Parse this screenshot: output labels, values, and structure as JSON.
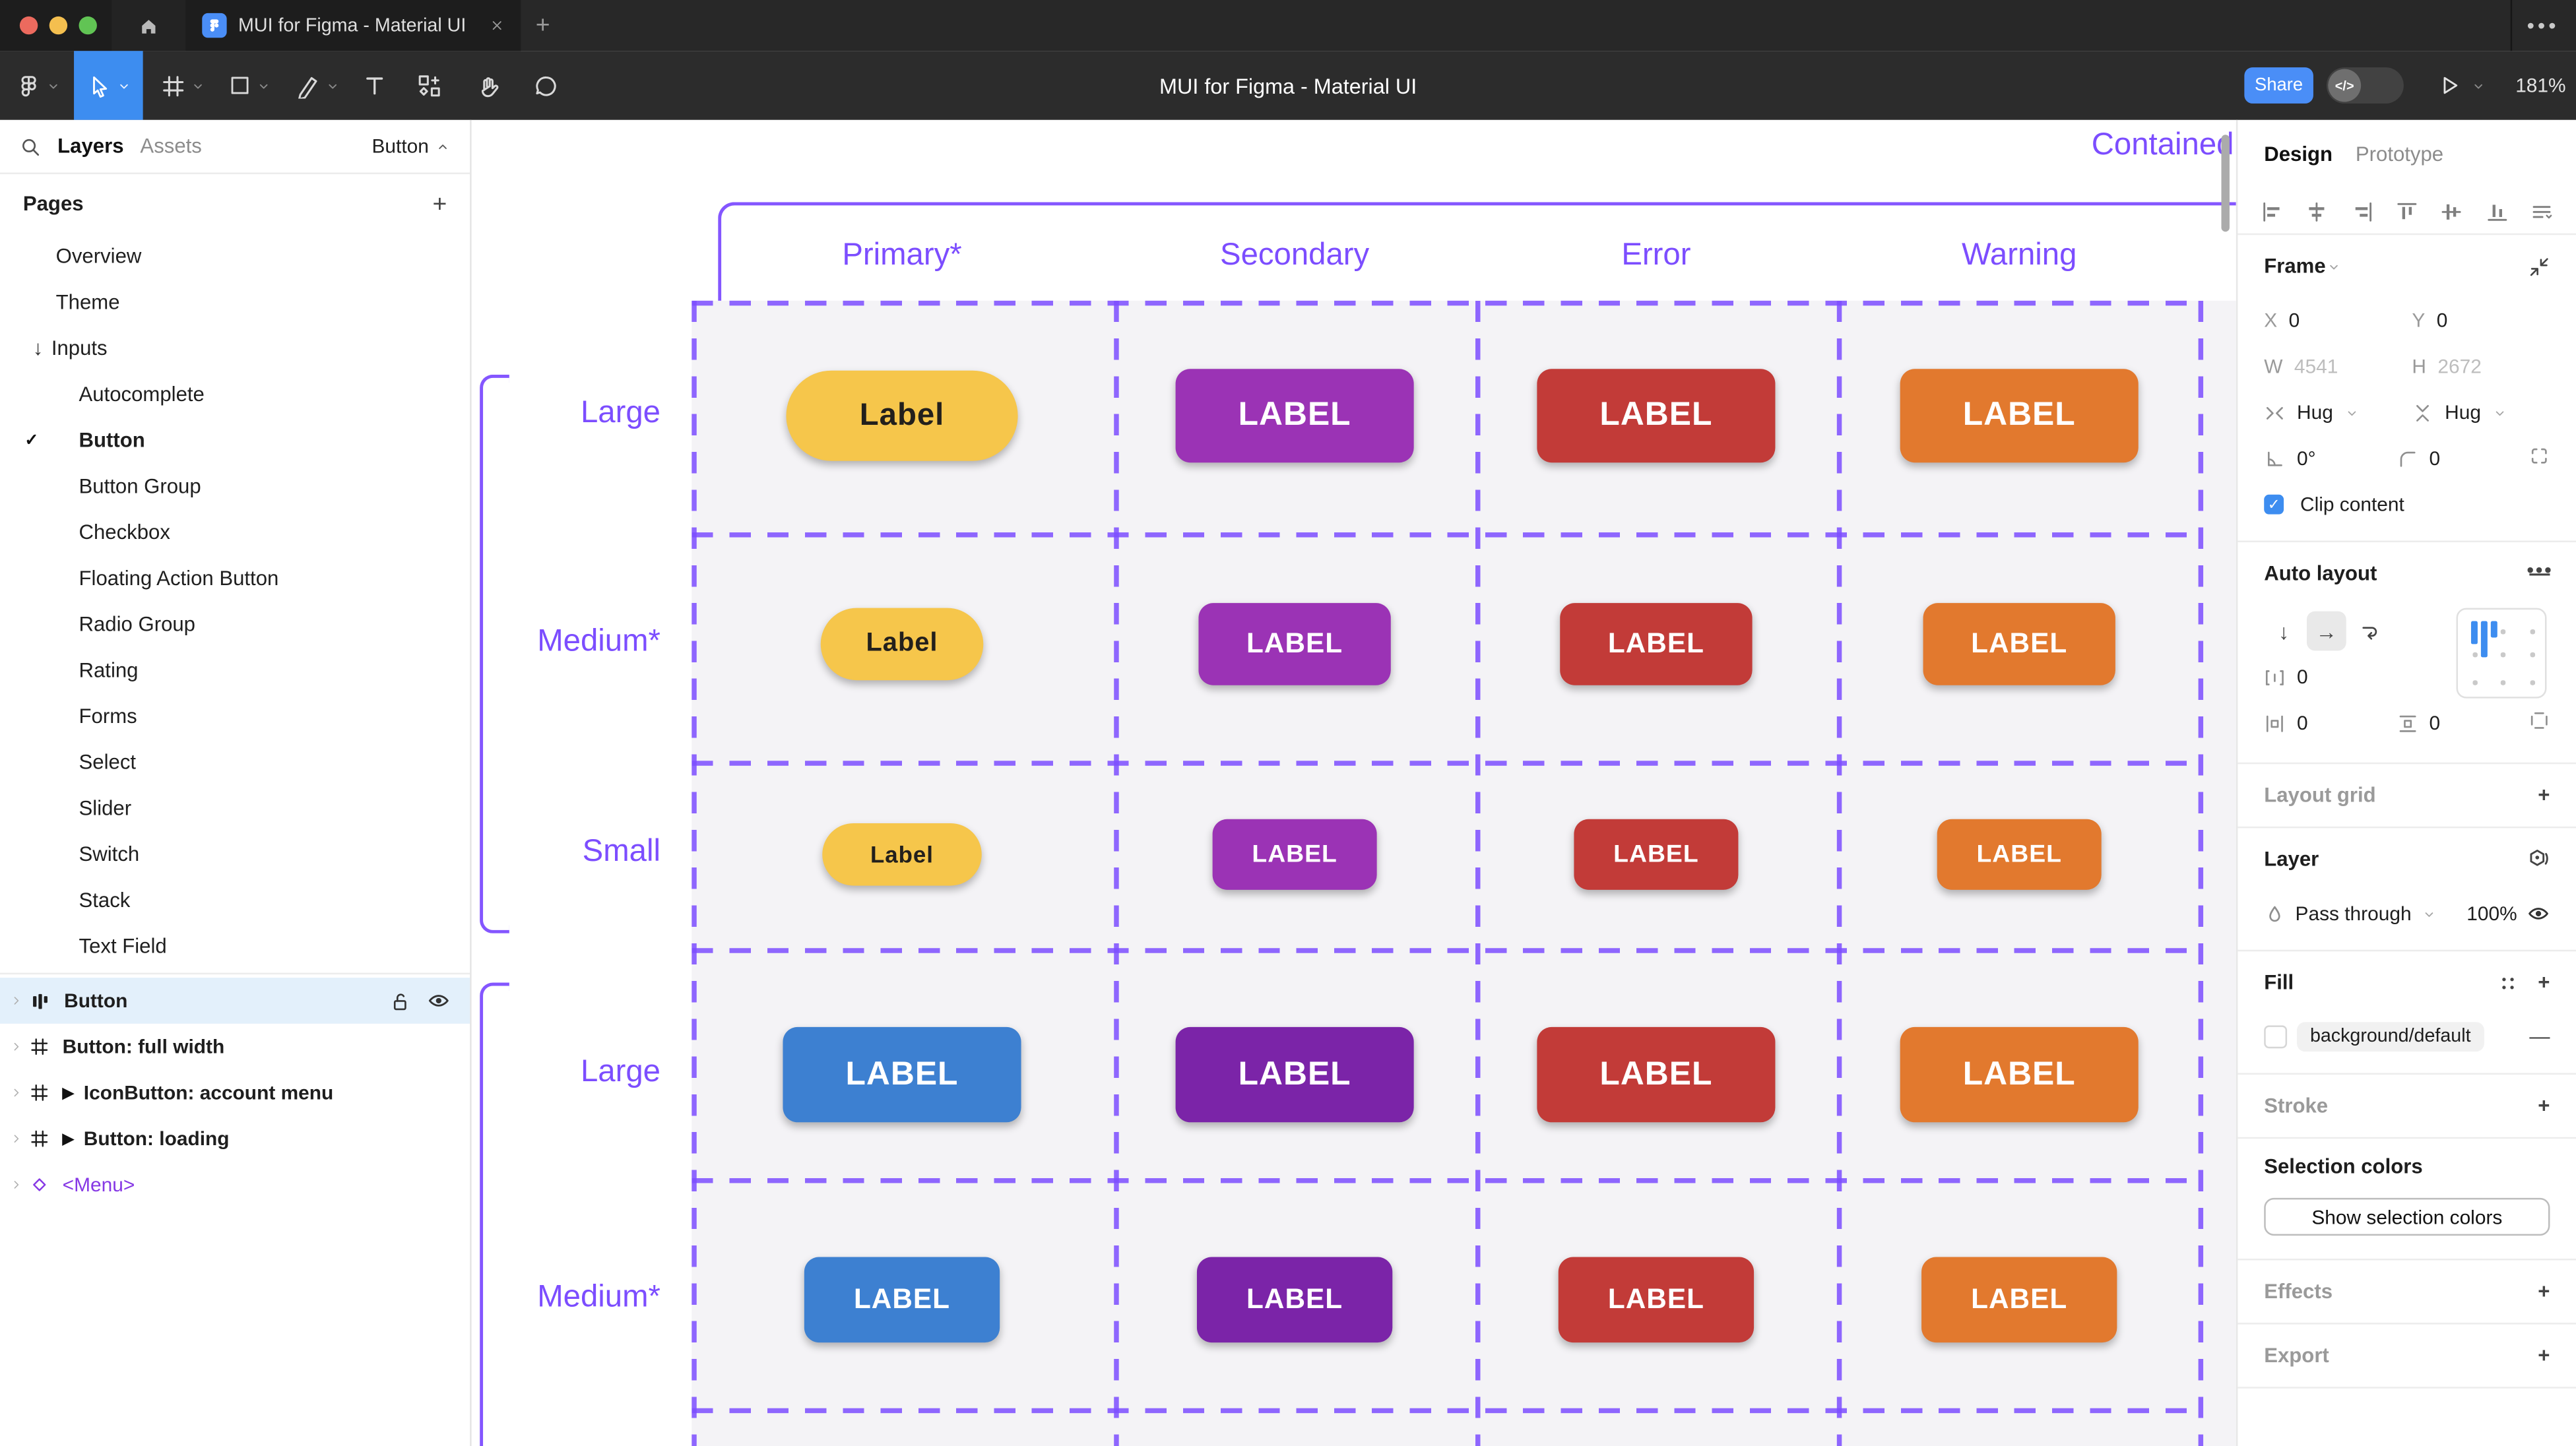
{
  "window": {
    "tab_title": "MUI for Figma - Material UI",
    "more_menu": "•••"
  },
  "toolbar": {
    "doc_title": "MUI for Figma - Material UI",
    "share_label": "Share",
    "dev_toggle_label": "</>",
    "zoom_value": "181%"
  },
  "sidebar": {
    "tabs": [
      {
        "label": "Layers",
        "active": true
      },
      {
        "label": "Assets",
        "active": false
      }
    ],
    "selection_chip": "Button",
    "pages_title": "Pages",
    "pages": [
      {
        "label": "Overview",
        "level": 0
      },
      {
        "label": "Theme",
        "level": 0
      },
      {
        "label": "Inputs",
        "level": 0,
        "arrow": "↓"
      },
      {
        "label": "Autocomplete",
        "level": 1
      },
      {
        "label": "Button",
        "level": 1,
        "current": true,
        "check": "✓"
      },
      {
        "label": "Button Group",
        "level": 1
      },
      {
        "label": "Checkbox",
        "level": 1
      },
      {
        "label": "Floating Action Button",
        "level": 1
      },
      {
        "label": "Radio Group",
        "level": 1
      },
      {
        "label": "Rating",
        "level": 1
      },
      {
        "label": "Forms",
        "level": 1
      },
      {
        "label": "Select",
        "level": 1
      },
      {
        "label": "Slider",
        "level": 1
      },
      {
        "label": "Switch",
        "level": 1
      },
      {
        "label": "Stack",
        "level": 1
      },
      {
        "label": "Text Field",
        "level": 1
      }
    ],
    "layers": [
      {
        "label": "Button",
        "icon": "autolayout",
        "selected": true
      },
      {
        "label": "Button: full width",
        "icon": "frame"
      },
      {
        "label": "IconButton: account menu",
        "icon": "frame",
        "play": "▶"
      },
      {
        "label": "Button: loading",
        "icon": "frame",
        "play": "▶"
      },
      {
        "label": "<Menu>",
        "icon": "diamond",
        "purple": true
      }
    ]
  },
  "canvas": {
    "frame_title": "Contained",
    "columns": [
      "Primary*",
      "Secondary",
      "Error",
      "Warning"
    ],
    "row_labels": [
      "Large",
      "Medium*",
      "Small",
      "Large",
      "Medium*"
    ],
    "colors": {
      "accent": "#7C4DFF",
      "frame_bg": "#F4F3F6",
      "scrollbar": "#ABABAB",
      "pill_yellow": "#F6C64B",
      "purple": "#9B33B5",
      "purple_dark": "#7B24A8",
      "red": "#C23B38",
      "orange": "#E2792E",
      "blue": "#3D80D1"
    },
    "buttons": [
      [
        {
          "text": "Label",
          "bg": "#F6C64B",
          "fg": "#23201C",
          "shape": "pill"
        },
        {
          "text": "LABEL",
          "bg": "#9B33B5",
          "fg": "#FFFFFF",
          "shape": "rounded"
        },
        {
          "text": "LABEL",
          "bg": "#C23B38",
          "fg": "#FFFFFF",
          "shape": "rounded"
        },
        {
          "text": "LABEL",
          "bg": "#E2792E",
          "fg": "#FFFFFF",
          "shape": "rounded"
        }
      ],
      [
        {
          "text": "Label",
          "bg": "#F6C64B",
          "fg": "#23201C",
          "shape": "pill"
        },
        {
          "text": "LABEL",
          "bg": "#9B33B5",
          "fg": "#FFFFFF",
          "shape": "rounded"
        },
        {
          "text": "LABEL",
          "bg": "#C23B38",
          "fg": "#FFFFFF",
          "shape": "rounded"
        },
        {
          "text": "LABEL",
          "bg": "#E2792E",
          "fg": "#FFFFFF",
          "shape": "rounded"
        }
      ],
      [
        {
          "text": "Label",
          "bg": "#F6C64B",
          "fg": "#23201C",
          "shape": "pill"
        },
        {
          "text": "LABEL",
          "bg": "#9B33B5",
          "fg": "#FFFFFF",
          "shape": "rounded"
        },
        {
          "text": "LABEL",
          "bg": "#C23B38",
          "fg": "#FFFFFF",
          "shape": "rounded"
        },
        {
          "text": "LABEL",
          "bg": "#E2792E",
          "fg": "#FFFFFF",
          "shape": "rounded"
        }
      ],
      [
        {
          "text": "LABEL",
          "bg": "#3D80D1",
          "fg": "#FFFFFF",
          "shape": "rounded"
        },
        {
          "text": "LABEL",
          "bg": "#7B24A8",
          "fg": "#FFFFFF",
          "shape": "rounded"
        },
        {
          "text": "LABEL",
          "bg": "#C23B38",
          "fg": "#FFFFFF",
          "shape": "rounded"
        },
        {
          "text": "LABEL",
          "bg": "#E2792E",
          "fg": "#FFFFFF",
          "shape": "rounded"
        }
      ],
      [
        {
          "text": "LABEL",
          "bg": "#3D80D1",
          "fg": "#FFFFFF",
          "shape": "rounded"
        },
        {
          "text": "LABEL",
          "bg": "#7B24A8",
          "fg": "#FFFFFF",
          "shape": "rounded"
        },
        {
          "text": "LABEL",
          "bg": "#C23B38",
          "fg": "#FFFFFF",
          "shape": "rounded"
        },
        {
          "text": "LABEL",
          "bg": "#E2792E",
          "fg": "#FFFFFF",
          "shape": "rounded"
        }
      ]
    ]
  },
  "right_panel": {
    "tabs": [
      {
        "label": "Design",
        "active": true
      },
      {
        "label": "Prototype",
        "active": false
      }
    ],
    "align_icons": [
      "align-left",
      "align-h-center",
      "align-right",
      "align-top",
      "align-v-center",
      "align-bottom",
      "tidy"
    ],
    "frame": {
      "title": "Frame",
      "x_label": "X",
      "x_value": "0",
      "y_label": "Y",
      "y_value": "0",
      "w_label": "W",
      "w_value": "4541",
      "h_label": "H",
      "h_value": "2672",
      "hug_h": "Hug",
      "hug_v": "Hug",
      "rotation": "0°",
      "corner_radius": "0",
      "clip_label": "Clip content"
    },
    "auto_layout": {
      "title": "Auto layout",
      "gap_value": "0",
      "padding_h": "0",
      "padding_v": "0",
      "more": "•••"
    },
    "layout_grid": {
      "title": "Layout grid"
    },
    "layer": {
      "title": "Layer",
      "blend_mode": "Pass through",
      "opacity": "100%"
    },
    "fill": {
      "title": "Fill",
      "swatch_color": "#FFFFFF",
      "style_name": "background/default"
    },
    "stroke": {
      "title": "Stroke"
    },
    "selection_colors": {
      "title": "Selection colors",
      "button_label": "Show selection colors"
    },
    "effects": {
      "title": "Effects"
    },
    "export": {
      "title": "Export"
    }
  }
}
